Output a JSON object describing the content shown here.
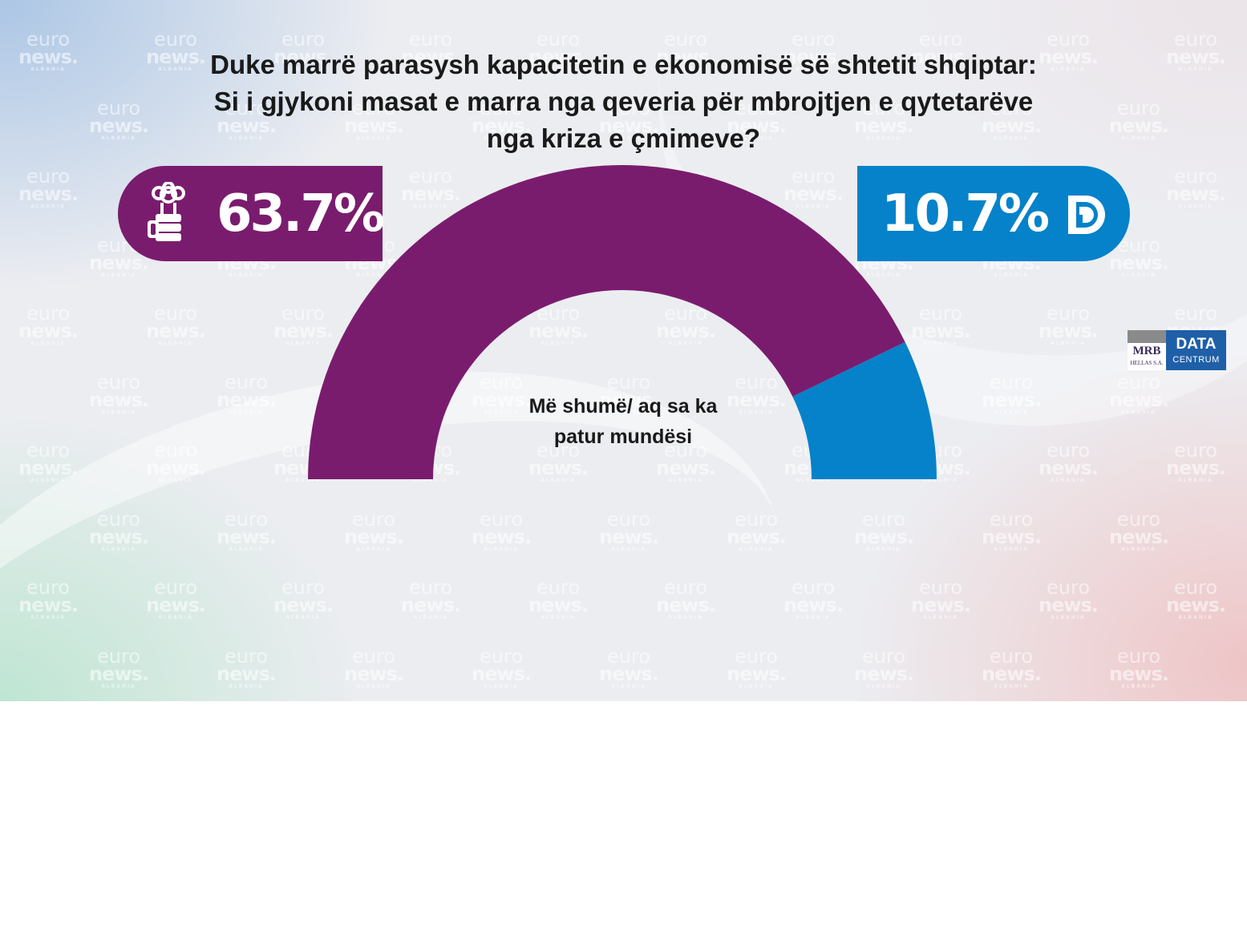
{
  "question": {
    "line1": "Duke marrë parasysh kapacitetin e ekonomisë së shtetit shqiptar:",
    "line2": "Si i gjykoni masat e marra nga qeveria për mbrojtjen e qytetarëve",
    "line3": "nga kriza e çmimeve?"
  },
  "answer_label": {
    "line1": "Më shumë/ aq sa ka",
    "line2": "patur mundësi"
  },
  "parties": {
    "left": {
      "value_text": "63.7%",
      "logo_icon": "socialist-party-rose-fist-icon",
      "color": "#7a1c6e"
    },
    "right": {
      "value_text": "10.7%",
      "logo_icon": "democratic-party-d-icon",
      "color": "#0582c9"
    }
  },
  "chart_data": {
    "type": "pie",
    "subtype": "semicircle-donut",
    "title": "Duke marrë parasysh kapacitetin e ekonomisë së shtetit shqiptar: Si i gjykoni masat e marra nga qeveria për mbrojtjen e qytetarëve nga kriza e çmimeve?",
    "center_label": "Më shumë/ aq sa ka patur mundësi",
    "values": [
      63.7,
      10.7
    ],
    "colors": [
      "#7a1c6e",
      "#0582c9"
    ]
  },
  "watermark": {
    "line1": "euro",
    "line2": "news.",
    "line3": "ALBANIA"
  },
  "branding": {
    "mrb_text": "MRB",
    "mrb_sub": "HELLAS S.A.",
    "data_text": "DATA",
    "centrum_text": "CENTRUM"
  }
}
